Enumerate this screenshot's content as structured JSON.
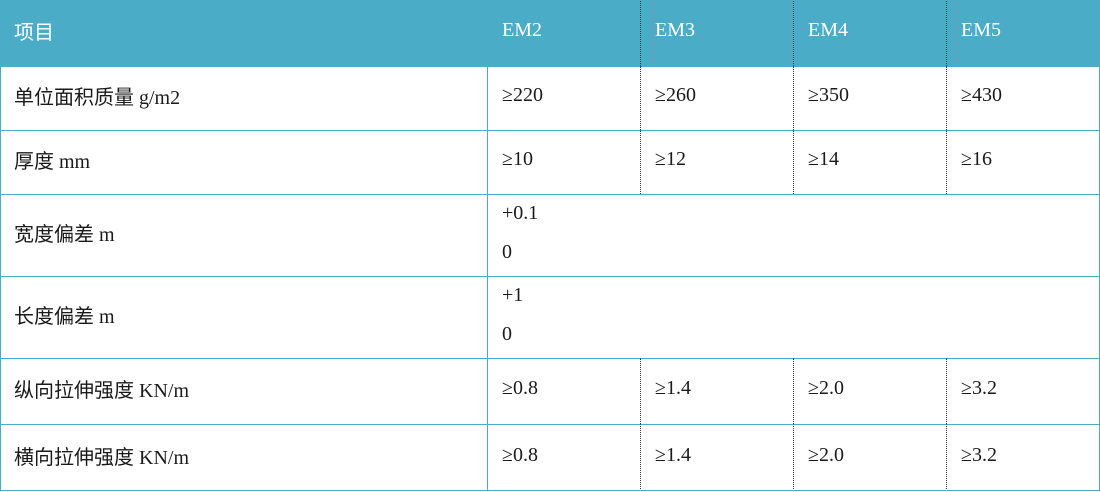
{
  "table": {
    "header": [
      "项目",
      "EM2",
      "EM3",
      "EM4",
      "EM5"
    ],
    "rows": [
      {
        "label": "单位面积质量 g/m2",
        "cells": [
          "≥220",
          "≥260",
          "≥350",
          "≥430"
        ]
      },
      {
        "label": "厚度 mm",
        "cells": [
          "≥10",
          "≥12",
          "≥14",
          "≥16"
        ]
      },
      {
        "label": "宽度偏差 m",
        "lines": [
          "+0.1",
          "0"
        ]
      },
      {
        "label": "长度偏差 m",
        "lines": [
          "+1",
          "0"
        ]
      },
      {
        "label": "纵向拉伸强度 KN/m",
        "cells": [
          "≥0.8",
          "≥1.4",
          "≥2.0",
          "≥3.2"
        ]
      },
      {
        "label": "横向拉伸强度 KN/m",
        "cells": [
          "≥0.8",
          "≥1.4",
          "≥2.0",
          "≥3.2"
        ]
      }
    ]
  }
}
